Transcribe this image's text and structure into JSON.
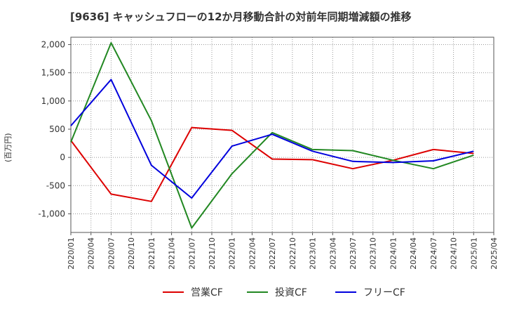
{
  "title": "[9636]  キャッシュフローの12か月移動合計の対前年同期増減額の推移",
  "chart_data": {
    "type": "line",
    "ylabel": "(百万円)",
    "x": [
      "2020/01",
      "2020/04",
      "2020/07",
      "2020/10",
      "2021/01",
      "2021/04",
      "2021/07",
      "2021/10",
      "2022/01",
      "2022/04",
      "2022/07",
      "2022/10",
      "2023/01",
      "2023/04",
      "2023/07",
      "2023/10",
      "2024/01",
      "2024/04",
      "2024/07",
      "2024/10",
      "2025/01",
      "2025/04"
    ],
    "ylim": [
      -1330,
      2130
    ],
    "yticks": [
      2000,
      1500,
      1000,
      500,
      0,
      -500,
      -1000
    ],
    "ytick_labels": [
      "2,000",
      "1,500",
      "1,000",
      "500",
      "0",
      "-500",
      "-1,000"
    ],
    "grid": true,
    "legend_position": "bottom",
    "series": [
      {
        "name": "営業CF",
        "color": "#dd0000",
        "points": [
          [
            "2020/01",
            300
          ],
          [
            "2020/07",
            -650
          ],
          [
            "2021/01",
            -780
          ],
          [
            "2021/07",
            530
          ],
          [
            "2022/01",
            480
          ],
          [
            "2022/07",
            -30
          ],
          [
            "2023/01",
            -40
          ],
          [
            "2023/07",
            -200
          ],
          [
            "2024/01",
            -50
          ],
          [
            "2024/07",
            140
          ],
          [
            "2025/01",
            70
          ]
        ]
      },
      {
        "name": "投資CF",
        "color": "#228822",
        "points": [
          [
            "2020/01",
            270
          ],
          [
            "2020/07",
            2030
          ],
          [
            "2021/01",
            650
          ],
          [
            "2021/07",
            -1250
          ],
          [
            "2022/01",
            -290
          ],
          [
            "2022/07",
            440
          ],
          [
            "2023/01",
            140
          ],
          [
            "2023/07",
            120
          ],
          [
            "2024/01",
            -50
          ],
          [
            "2024/07",
            -200
          ],
          [
            "2025/01",
            40
          ]
        ]
      },
      {
        "name": "フリーCF",
        "color": "#0000dd",
        "points": [
          [
            "2020/01",
            560
          ],
          [
            "2020/07",
            1380
          ],
          [
            "2021/01",
            -140
          ],
          [
            "2021/07",
            -720
          ],
          [
            "2022/01",
            200
          ],
          [
            "2022/07",
            410
          ],
          [
            "2023/01",
            110
          ],
          [
            "2023/07",
            -70
          ],
          [
            "2024/01",
            -90
          ],
          [
            "2024/07",
            -60
          ],
          [
            "2025/01",
            110
          ]
        ]
      }
    ]
  }
}
